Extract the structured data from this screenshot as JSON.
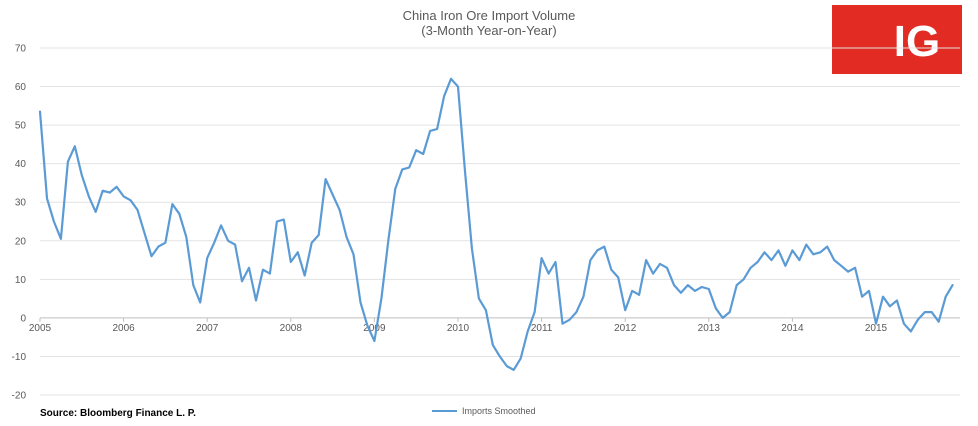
{
  "chart_data": {
    "type": "line",
    "title": "China Iron Ore Import Volume",
    "subtitle": "(3-Month Year-on-Year)",
    "xlabel": "",
    "ylabel": "",
    "ylim": [
      -20,
      70
    ],
    "y_ticks": [
      70,
      60,
      50,
      40,
      30,
      20,
      10,
      0,
      -10,
      -20
    ],
    "x_tick_labels": [
      "2005",
      "2006",
      "2007",
      "2008",
      "2009",
      "2010",
      "2011",
      "2012",
      "2013",
      "2014",
      "2015"
    ],
    "x_start_year": 2005,
    "grid": true,
    "legend_position": "bottom-center",
    "series": [
      {
        "name": "Imports Smoothed",
        "color": "#5b9bd5",
        "values": [
          53.5,
          31,
          25,
          20.5,
          40.5,
          44.5,
          37,
          31.5,
          27.5,
          33,
          32.5,
          34,
          31.5,
          30.5,
          28,
          22,
          16,
          18.5,
          19.5,
          29.5,
          27,
          21,
          8.5,
          4,
          15.5,
          19.5,
          24,
          20,
          19,
          9.5,
          13,
          4.5,
          12.5,
          11.5,
          25,
          25.5,
          14.5,
          17,
          11,
          19.5,
          21.5,
          36,
          32,
          28,
          21,
          16.5,
          4,
          -2,
          -6,
          5,
          20,
          33.5,
          38.5,
          39,
          43.5,
          42.5,
          48.5,
          49,
          57.5,
          62,
          60,
          38,
          18,
          5,
          2,
          -7,
          -10,
          -12.5,
          -13.5,
          -10.5,
          -3.5,
          1.5,
          15.5,
          11.5,
          14.5,
          -1.5,
          -0.5,
          1.5,
          5.5,
          15,
          17.5,
          18.5,
          12.5,
          10.5,
          2,
          7,
          6,
          15,
          11.5,
          14,
          13,
          8.5,
          6.5,
          8.5,
          7,
          8,
          7.5,
          2.5,
          0,
          1.5,
          8.5,
          10,
          13,
          14.5,
          17,
          15,
          17.5,
          13.5,
          17.5,
          15,
          19,
          16.5,
          17,
          18.5,
          15,
          13.5,
          12,
          13,
          5.5,
          7,
          -1.5,
          5.5,
          3,
          4.5,
          -1.5,
          -3.5,
          -0.5,
          1.5,
          1.5,
          -1,
          5.5,
          8.5
        ]
      }
    ]
  },
  "source_text": "Source: Bloomberg Finance L. P.",
  "logo": {
    "text": "IG",
    "color": "#e22b22"
  }
}
